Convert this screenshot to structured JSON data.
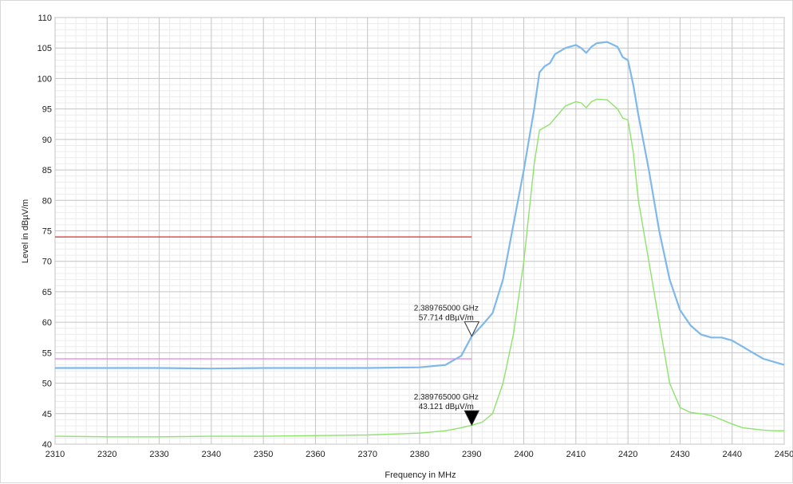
{
  "chart_data": {
    "type": "line",
    "title": "",
    "xlabel": "Frequency in MHz",
    "ylabel": "Level in dBµV/m",
    "xlim": [
      2310,
      2450
    ],
    "ylim": [
      40,
      110
    ],
    "x_ticks": [
      2310,
      2320,
      2330,
      2340,
      2350,
      2360,
      2370,
      2380,
      2390,
      2400,
      2410,
      2420,
      2430,
      2440,
      2450
    ],
    "y_ticks": [
      40,
      45,
      50,
      55,
      60,
      65,
      70,
      75,
      80,
      85,
      90,
      95,
      100,
      105,
      110
    ],
    "grid": true,
    "series": [
      {
        "color": "#7fb8ea",
        "x": [
          2310,
          2320,
          2330,
          2340,
          2350,
          2360,
          2370,
          2380,
          2385,
          2388,
          2390,
          2392,
          2394,
          2396,
          2398,
          2400,
          2402,
          2403,
          2404,
          2405,
          2406,
          2408,
          2410,
          2411,
          2412,
          2413,
          2414,
          2416,
          2418,
          2419,
          2420,
          2421,
          2422,
          2424,
          2426,
          2428,
          2430,
          2432,
          2434,
          2436,
          2438,
          2440,
          2442,
          2444,
          2446,
          2448,
          2450
        ],
        "values": [
          52.5,
          52.5,
          52.5,
          52.4,
          52.5,
          52.5,
          52.5,
          52.6,
          53.0,
          54.5,
          57.7,
          59.5,
          61.5,
          67,
          76,
          85,
          95,
          101,
          102,
          102.5,
          104,
          105,
          105.5,
          105,
          104.2,
          105.2,
          105.8,
          106,
          105.2,
          103.5,
          103,
          99,
          94,
          85,
          75,
          67,
          62,
          59.5,
          58,
          57.5,
          57.5,
          57,
          56,
          55,
          54,
          53.5,
          53
        ]
      },
      {
        "color": "#8ee36c",
        "x": [
          2310,
          2320,
          2330,
          2340,
          2350,
          2360,
          2370,
          2380,
          2385,
          2388,
          2390,
          2392,
          2394,
          2396,
          2398,
          2400,
          2402,
          2403,
          2404,
          2405,
          2406,
          2408,
          2410,
          2411,
          2412,
          2413,
          2414,
          2416,
          2418,
          2419,
          2420,
          2421,
          2422,
          2424,
          2426,
          2428,
          2430,
          2432,
          2434,
          2436,
          2438,
          2440,
          2442,
          2444,
          2446,
          2448,
          2450
        ],
        "values": [
          41.3,
          41.2,
          41.2,
          41.3,
          41.3,
          41.4,
          41.5,
          41.8,
          42.2,
          42.7,
          43.1,
          43.6,
          45,
          50,
          58,
          70,
          86,
          91.5,
          92,
          92.5,
          93.5,
          95.5,
          96.2,
          96,
          95.2,
          96.2,
          96.6,
          96.5,
          95,
          93.5,
          93.2,
          88,
          80,
          70,
          60,
          50,
          46,
          45.2,
          45,
          44.7,
          44,
          43.3,
          42.7,
          42.5,
          42.3,
          42.2,
          42.2
        ]
      }
    ],
    "limit_lines": [
      {
        "color": "#e02b2b",
        "y": 74,
        "x_range": [
          2310,
          2390
        ]
      },
      {
        "color": "#e77fe4",
        "y": 54,
        "x_range": [
          2310,
          2390
        ]
      }
    ],
    "markers": [
      {
        "style": "open-triangle",
        "x": 2390,
        "y": 57.714,
        "freq_label": "2.389765000 GHz",
        "level_label": "57.714 dBµV/m"
      },
      {
        "style": "filled-triangle",
        "x": 2390,
        "y": 43.121,
        "freq_label": "2.389765000 GHz",
        "level_label": "43.121 dBµV/m"
      }
    ]
  }
}
